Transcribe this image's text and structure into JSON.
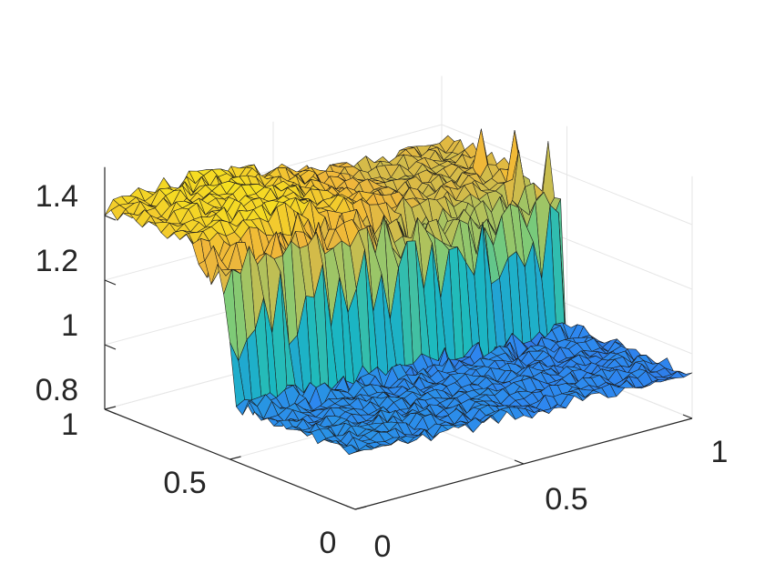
{
  "chart_data": {
    "type": "surface",
    "title": "",
    "xlabel": "",
    "ylabel": "",
    "zlabel": "",
    "xlim": [
      0,
      1
    ],
    "ylim": [
      0,
      1
    ],
    "zlim": [
      0.8,
      1.55
    ],
    "x_ticks": [
      "0",
      "0.5",
      "1"
    ],
    "y_ticks": [
      "0",
      "0.5",
      "1"
    ],
    "z_ticks": [
      "0.8",
      "1",
      "1.2",
      "1.4"
    ],
    "grid": true,
    "colormap": "parula",
    "colormap_stops": [
      "#3e26a8",
      "#2e87f0",
      "#1ab9c0",
      "#7ccb78",
      "#f0b63a",
      "#f9fb0e"
    ],
    "surface": {
      "description_free_values": true,
      "low_level_z": 0.97,
      "high_level_z": 1.42,
      "step_y_position": 0.5,
      "y_low_region": [
        0,
        0.5
      ],
      "y_high_region": [
        0.5,
        1
      ],
      "grid_resolution": [
        40,
        40
      ],
      "spike_values": [
        {
          "x": 1.0,
          "y": 0.58,
          "z": 1.48
        },
        {
          "x": 0.98,
          "y": 0.68,
          "z": 1.49
        },
        {
          "x": 0.96,
          "y": 0.78,
          "z": 1.47
        },
        {
          "x": 0.94,
          "y": 0.62,
          "z": 1.45
        }
      ],
      "dip_values": [
        {
          "x": 1.0,
          "y": 0.5,
          "z": 0.82
        }
      ]
    }
  }
}
